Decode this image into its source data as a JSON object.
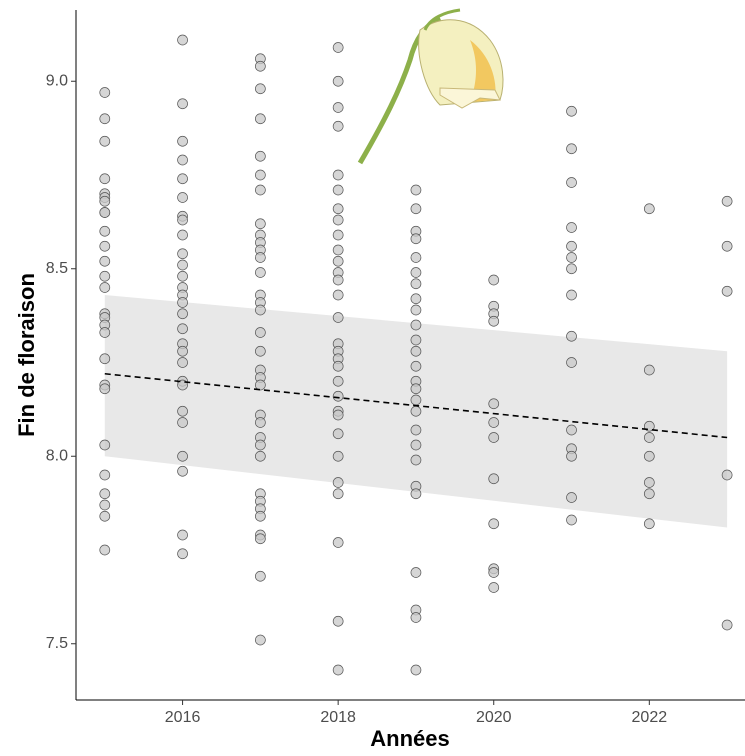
{
  "chart_data": {
    "type": "scatter",
    "x_label": "Années",
    "y_label": "Fin de floraison",
    "x": [
      2015,
      2015,
      2015,
      2015,
      2015,
      2015,
      2015,
      2015,
      2015,
      2015,
      2015,
      2015,
      2015,
      2015,
      2015,
      2015,
      2015,
      2015,
      2015,
      2015,
      2015,
      2015,
      2015,
      2015,
      2015,
      2015,
      2015,
      2016,
      2016,
      2016,
      2016,
      2016,
      2016,
      2016,
      2016,
      2016,
      2016,
      2016,
      2016,
      2016,
      2016,
      2016,
      2016,
      2016,
      2016,
      2016,
      2016,
      2016,
      2016,
      2016,
      2016,
      2016,
      2016,
      2016,
      2016,
      2017,
      2017,
      2017,
      2017,
      2017,
      2017,
      2017,
      2017,
      2017,
      2017,
      2017,
      2017,
      2017,
      2017,
      2017,
      2017,
      2017,
      2017,
      2017,
      2017,
      2017,
      2017,
      2017,
      2017,
      2017,
      2017,
      2017,
      2017,
      2017,
      2017,
      2017,
      2017,
      2017,
      2017,
      2018,
      2018,
      2018,
      2018,
      2018,
      2018,
      2018,
      2018,
      2018,
      2018,
      2018,
      2018,
      2018,
      2018,
      2018,
      2018,
      2018,
      2018,
      2018,
      2018,
      2018,
      2018,
      2018,
      2018,
      2018,
      2018,
      2018,
      2018,
      2018,
      2018,
      2019,
      2019,
      2019,
      2019,
      2019,
      2019,
      2019,
      2019,
      2019,
      2019,
      2019,
      2019,
      2019,
      2019,
      2019,
      2019,
      2019,
      2019,
      2019,
      2019,
      2019,
      2019,
      2019,
      2019,
      2019,
      2019,
      2020,
      2020,
      2020,
      2020,
      2020,
      2020,
      2020,
      2020,
      2020,
      2020,
      2020,
      2020,
      2021,
      2021,
      2021,
      2021,
      2021,
      2021,
      2021,
      2021,
      2021,
      2021,
      2021,
      2021,
      2021,
      2021,
      2021,
      2022,
      2022,
      2022,
      2022,
      2022,
      2022,
      2022,
      2022,
      2023,
      2023,
      2023,
      2023,
      2023
    ],
    "values": [
      8.97,
      8.9,
      8.84,
      8.74,
      8.7,
      8.69,
      8.68,
      8.65,
      8.65,
      8.6,
      8.56,
      8.52,
      8.48,
      8.45,
      8.38,
      8.37,
      8.35,
      8.33,
      8.26,
      8.19,
      8.18,
      8.03,
      7.95,
      7.9,
      7.87,
      7.84,
      7.75,
      9.11,
      8.94,
      8.84,
      8.79,
      8.74,
      8.69,
      8.64,
      8.63,
      8.59,
      8.54,
      8.51,
      8.48,
      8.45,
      8.43,
      8.41,
      8.38,
      8.34,
      8.3,
      8.28,
      8.25,
      8.2,
      8.19,
      8.12,
      8.09,
      8.0,
      7.96,
      7.79,
      7.74,
      9.06,
      9.04,
      8.98,
      8.9,
      8.8,
      8.75,
      8.71,
      8.62,
      8.59,
      8.57,
      8.55,
      8.53,
      8.49,
      8.43,
      8.41,
      8.39,
      8.33,
      8.28,
      8.23,
      8.21,
      8.19,
      8.11,
      8.09,
      8.05,
      8.03,
      8.0,
      7.9,
      7.88,
      7.86,
      7.84,
      7.79,
      7.78,
      7.68,
      7.51,
      9.09,
      9.0,
      8.93,
      8.88,
      8.75,
      8.71,
      8.66,
      8.63,
      8.59,
      8.55,
      8.52,
      8.49,
      8.47,
      8.43,
      8.37,
      8.3,
      8.28,
      8.26,
      8.24,
      8.2,
      8.16,
      8.12,
      8.11,
      8.06,
      8.0,
      7.93,
      7.9,
      7.77,
      7.56,
      7.43,
      8.71,
      8.66,
      8.6,
      8.58,
      8.53,
      8.49,
      8.46,
      8.42,
      8.39,
      8.35,
      8.31,
      8.28,
      8.24,
      8.2,
      8.18,
      8.15,
      8.12,
      8.07,
      8.03,
      7.99,
      7.92,
      7.9,
      7.69,
      7.59,
      7.57,
      7.43,
      8.47,
      8.4,
      8.38,
      8.36,
      8.14,
      8.09,
      8.05,
      7.94,
      7.82,
      7.7,
      7.69,
      7.65,
      8.92,
      8.82,
      8.73,
      8.61,
      8.56,
      8.53,
      8.5,
      8.43,
      8.32,
      8.25,
      8.07,
      8.02,
      8.0,
      7.89,
      7.83,
      8.66,
      8.23,
      8.08,
      8.05,
      8.0,
      7.93,
      7.9,
      7.82,
      8.68,
      8.56,
      8.44,
      7.95,
      7.55
    ],
    "color": "#c8c8c8",
    "trend": {
      "x": [
        2015,
        2023
      ],
      "values": [
        8.22,
        8.05
      ],
      "lower": [
        8.0,
        7.81
      ],
      "upper": [
        8.43,
        8.28
      ]
    },
    "xlim": [
      2014.63,
      2023.23
    ],
    "ylim": [
      7.35,
      9.19
    ],
    "xticks": [
      2016,
      2018,
      2020,
      2022
    ],
    "yticks": [
      7.5,
      {
        "value": 8,
        "label": "8.0"
      },
      8.5,
      {
        "value": 9,
        "label": "9.0"
      }
    ]
  }
}
